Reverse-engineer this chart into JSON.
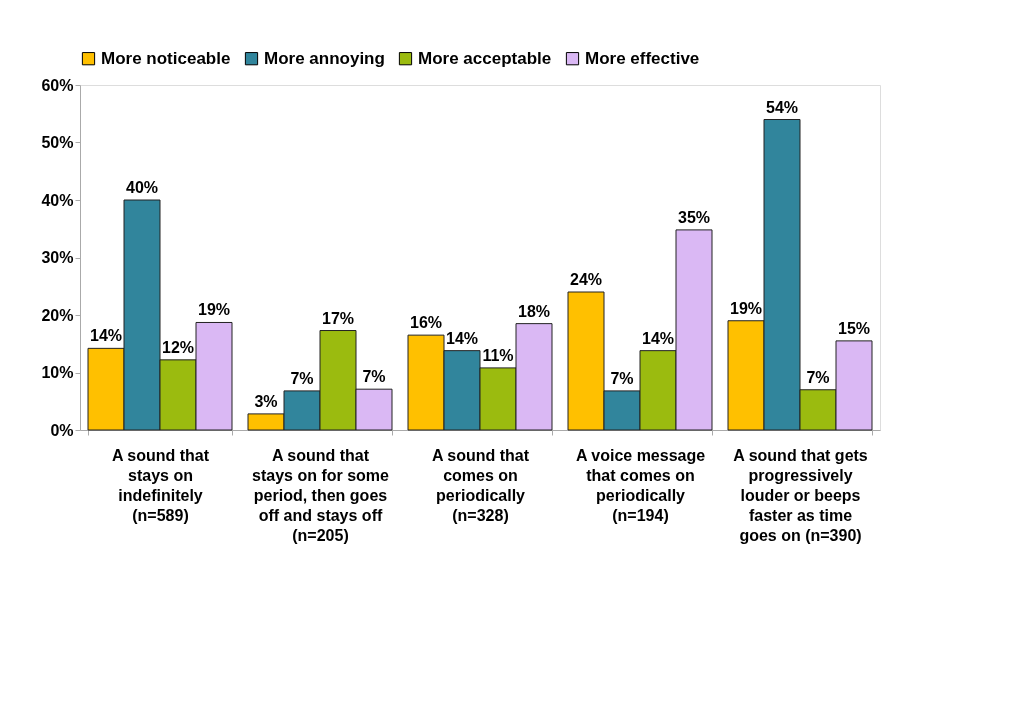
{
  "chart_data": {
    "type": "bar",
    "categories": [
      "A sound that stays on indefinitely (n=589)",
      "A sound that stays on for some period, then goes off and stays off (n=205)",
      "A sound that comes on periodically (n=328)",
      "A voice message that comes on periodically (n=194)",
      "A sound that gets progressively louder or beeps faster as time goes on (n=390)"
    ],
    "series": [
      {
        "name": "More noticeable",
        "color": "#ffc000",
        "values": [
          14.2,
          2.8,
          16.5,
          24,
          19
        ],
        "value_labels": [
          "14%",
          "3%",
          "16%",
          "24%",
          "19%"
        ]
      },
      {
        "name": "More annoying",
        "color": "#31859c",
        "values": [
          40,
          6.8,
          13.8,
          6.8,
          54
        ],
        "value_labels": [
          "40%",
          "7%",
          "14%",
          "7%",
          "54%"
        ]
      },
      {
        "name": "More acceptable",
        "color": "#9bbb0f",
        "values": [
          12.2,
          17.3,
          10.8,
          13.8,
          7
        ],
        "value_labels": [
          "12%",
          "17%",
          "11%",
          "14%",
          "7%"
        ]
      },
      {
        "name": "More effective",
        "color": "#dab8f4",
        "values": [
          18.7,
          7.1,
          18.5,
          34.8,
          15.5
        ],
        "value_labels": [
          "19%",
          "7%",
          "18%",
          "35%",
          "15%"
        ]
      }
    ],
    "ylim": [
      0,
      60
    ],
    "yticks": [
      {
        "value": 0,
        "label": "0%"
      },
      {
        "value": 10,
        "label": "10%"
      },
      {
        "value": 20,
        "label": "20%"
      },
      {
        "value": 30,
        "label": "30%"
      },
      {
        "value": 40,
        "label": "40%"
      },
      {
        "value": 50,
        "label": "50%"
      },
      {
        "value": 60,
        "label": "60%"
      }
    ],
    "legend": "top",
    "grid": false
  }
}
